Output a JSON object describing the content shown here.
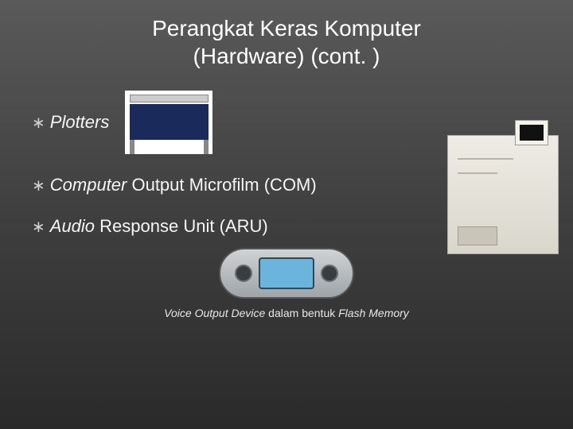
{
  "title_line1": "Perangkat Keras Komputer",
  "title_line2": "(Hardware) (cont. )",
  "bullets": {
    "b1": "Plotters",
    "b2": "Computer",
    "b2_rest": " Output Microfilm (COM)",
    "b3": "Audio",
    "b3_rest": " Response Unit (ARU)"
  },
  "caption_italic1": "Voice Output Device",
  "caption_plain": " dalam bentuk ",
  "caption_italic2": "Flash Memory",
  "colors": {
    "bg_top": "#5a5a5a",
    "bg_bottom": "#2a2a2a",
    "text": "#f0f0f0"
  }
}
